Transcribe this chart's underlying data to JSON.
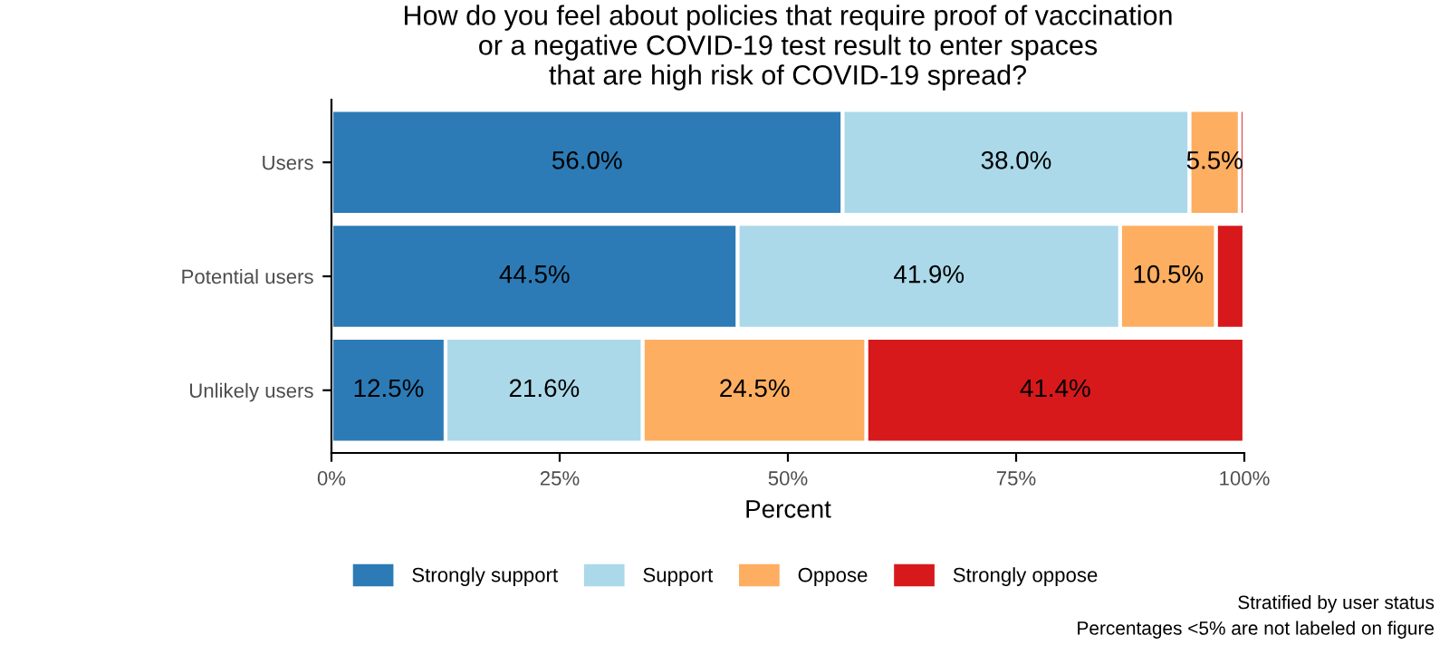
{
  "chart_data": {
    "type": "bar",
    "orientation": "horizontal",
    "stacked": true,
    "title": "How do you feel about policies that require proof of vaccination\nor a negative COVID-19 test result to enter spaces\nthat are high risk of COVID-19 spread?",
    "xlabel": "Percent",
    "categories": [
      "Users",
      "Potential users",
      "Unlikely users"
    ],
    "series": [
      {
        "name": "Strongly support",
        "color": "#2c7bb6",
        "values": [
          56.0,
          44.5,
          12.5
        ],
        "value_labels": [
          "56.0%",
          "44.5%",
          "12.5%"
        ]
      },
      {
        "name": "Support",
        "color": "#abd9e9",
        "values": [
          38.0,
          41.9,
          21.6
        ],
        "value_labels": [
          "38.0%",
          "41.9%",
          "21.6%"
        ]
      },
      {
        "name": "Oppose",
        "color": "#fdae61",
        "values": [
          5.5,
          10.5,
          24.5
        ],
        "value_labels": [
          "5.5%",
          "10.5%",
          "24.5%"
        ]
      },
      {
        "name": "Strongly oppose",
        "color": "#d7191c",
        "values": [
          0.5,
          3.1,
          41.4
        ],
        "value_labels": [
          null,
          null,
          "41.4%"
        ]
      }
    ],
    "xlim": [
      0,
      100
    ],
    "xticks": [
      {
        "value": 0,
        "label": "0%"
      },
      {
        "value": 25,
        "label": "25%"
      },
      {
        "value": 50,
        "label": "50%"
      },
      {
        "value": 75,
        "label": "75%"
      },
      {
        "value": 100,
        "label": "100%"
      }
    ],
    "grid": false,
    "legend": "bottom",
    "annotations": [
      "Stratified by user status",
      "Percentages <5% are not labeled on figure"
    ]
  }
}
